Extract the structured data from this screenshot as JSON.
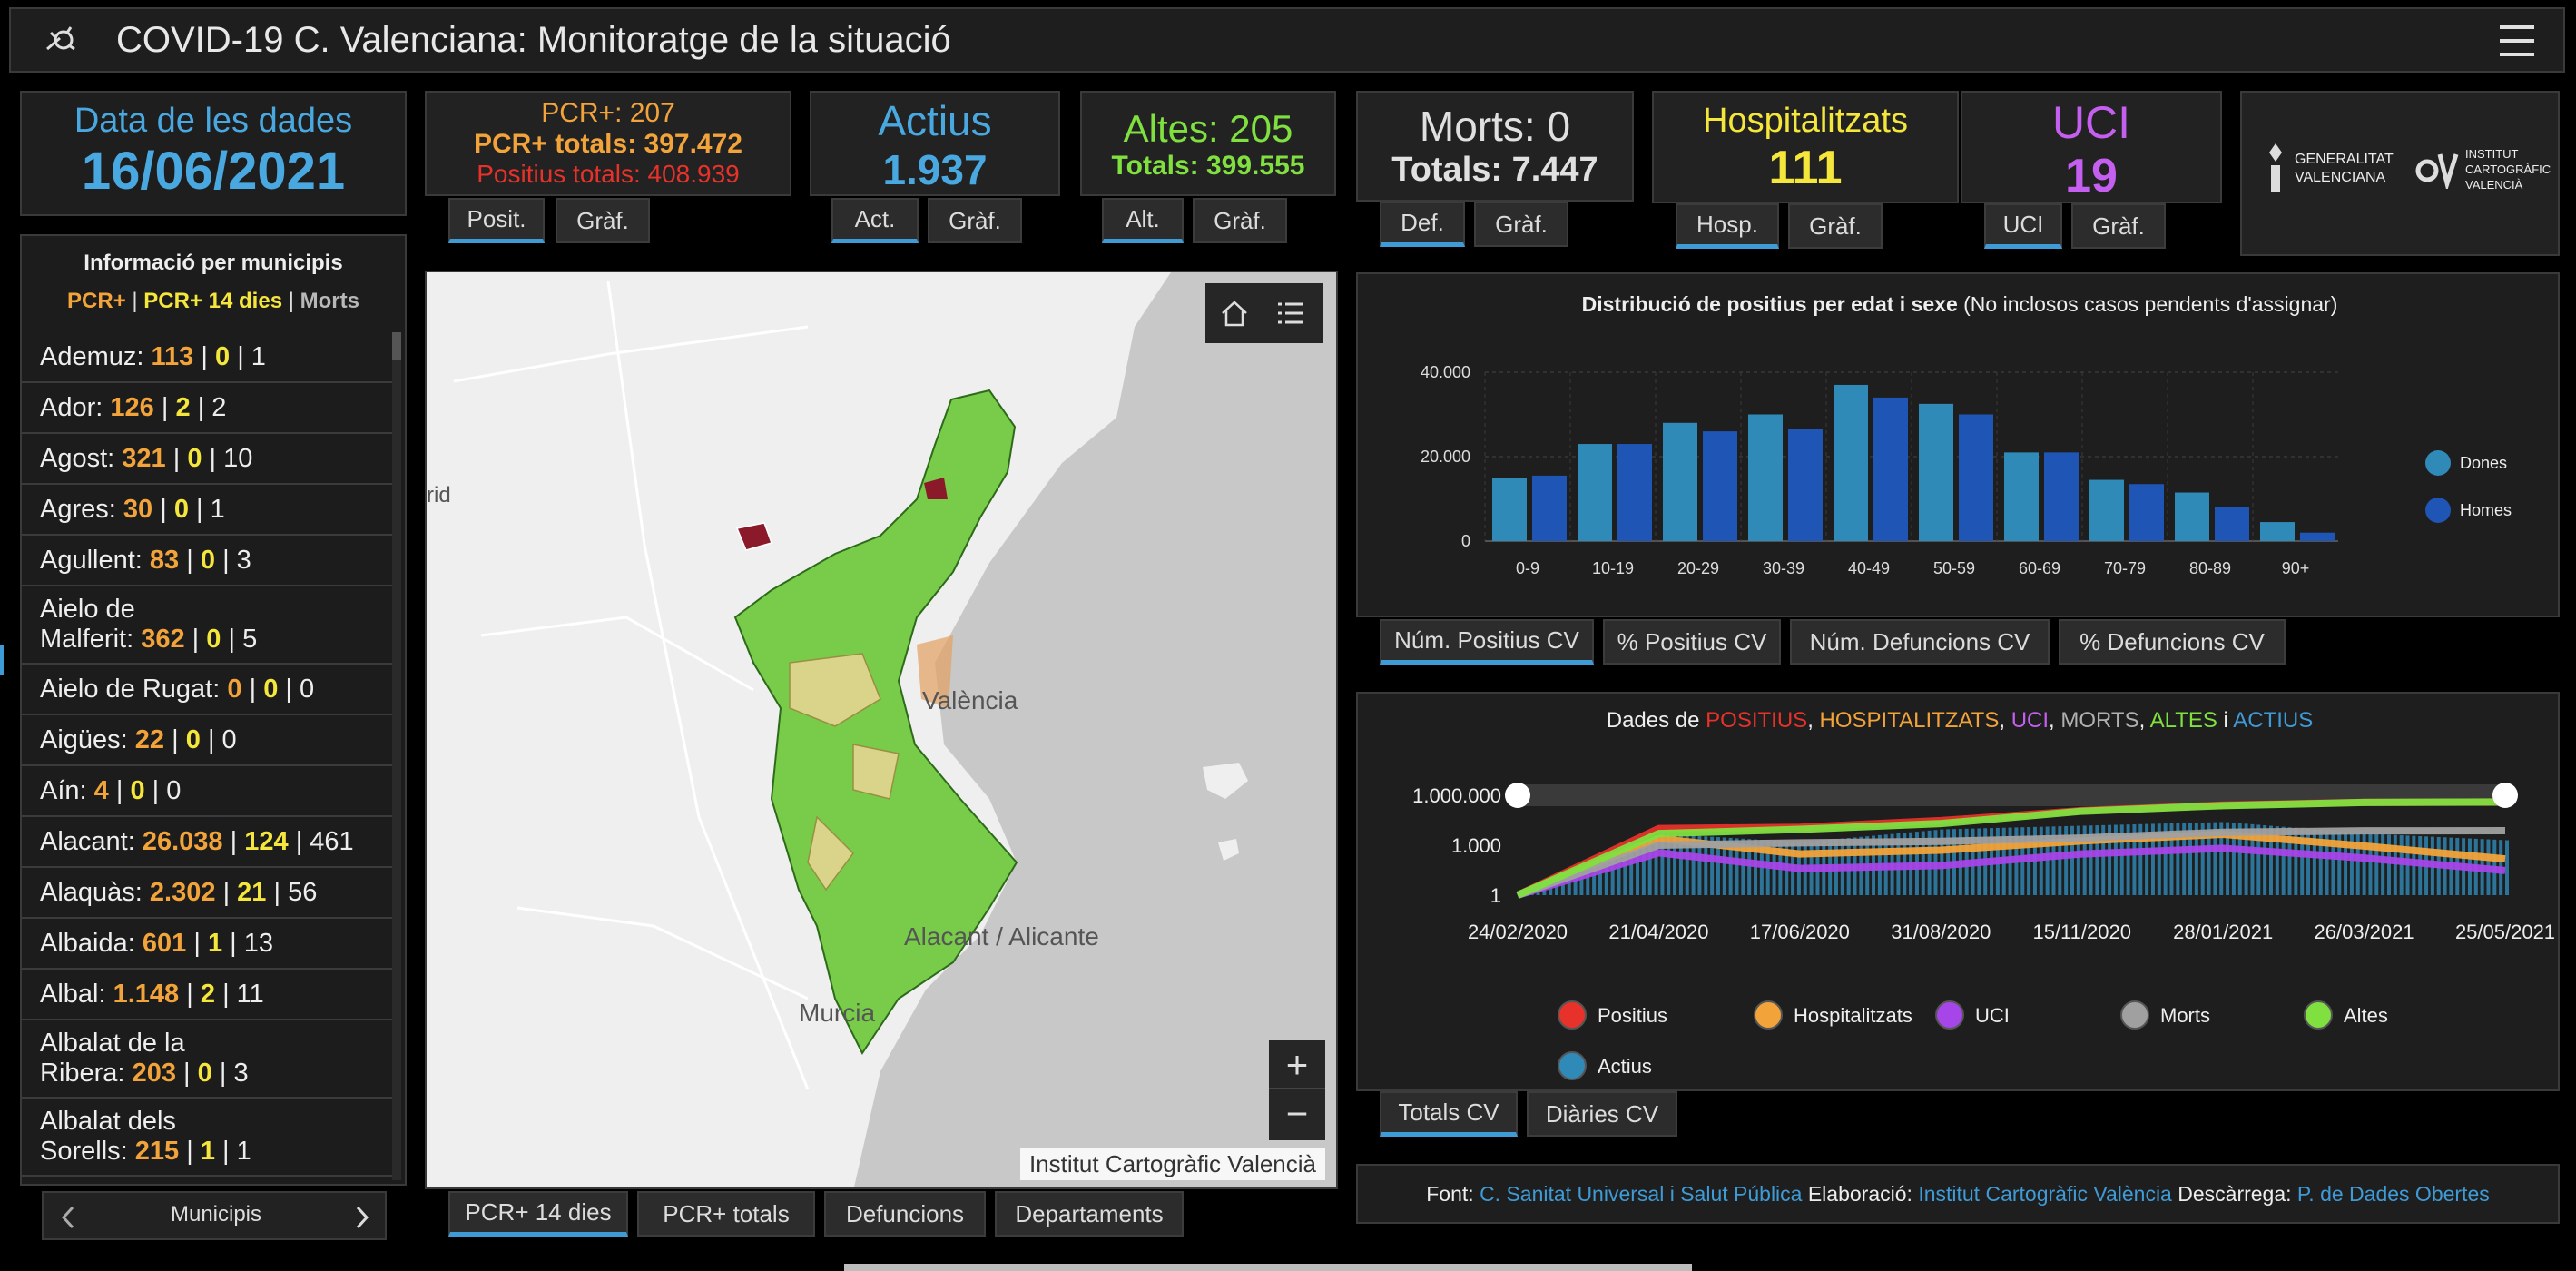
{
  "header": {
    "title": "COVID-19 C. Valenciana: Monitoratge de la situació"
  },
  "date_card": {
    "label": "Data de les dades",
    "value": "16/06/2021"
  },
  "pcr_card": {
    "line1": "PCR+: 207",
    "line2": "PCR+ totals: 397.472",
    "line3": "Positius totals: 408.939",
    "tab1": "Posit.",
    "tab2": "Gràf."
  },
  "actius_card": {
    "label": "Actius",
    "value": "1.937",
    "tab1": "Act.",
    "tab2": "Gràf."
  },
  "altes_card": {
    "line1": "Altes: 205",
    "line2": "Totals: 399.555",
    "tab1": "Alt.",
    "tab2": "Gràf."
  },
  "morts_card": {
    "line1": "Morts: 0",
    "line2": "Totals: 7.447",
    "tab1": "Def.",
    "tab2": "Gràf."
  },
  "hosp_card": {
    "label": "Hospitalitzats",
    "value": "111",
    "tab1": "Hosp.",
    "tab2": "Gràf."
  },
  "uci_card": {
    "label": "UCI",
    "value": "19",
    "tab1": "UCI",
    "tab2": "Gràf."
  },
  "logos": {
    "gva": "GENERALITAT VALENCIANA",
    "icv": "INSTITUT CARTOGRÀFIC VALENCIÀ"
  },
  "municipis": {
    "title": "Informació per municipis",
    "legend_pcr": "PCR+",
    "legend_pcr14": "PCR+ 14 dies",
    "legend_morts": "Morts",
    "sep": "|",
    "rows": [
      {
        "name": "Ademuz:",
        "pcr": "113",
        "pcr14": "0",
        "morts": "1"
      },
      {
        "name": "Ador:",
        "pcr": "126",
        "pcr14": "2",
        "morts": "2"
      },
      {
        "name": "Agost:",
        "pcr": "321",
        "pcr14": "0",
        "morts": "10"
      },
      {
        "name": "Agres:",
        "pcr": "30",
        "pcr14": "0",
        "morts": "1"
      },
      {
        "name": "Agullent:",
        "pcr": "83",
        "pcr14": "0",
        "morts": "3"
      },
      {
        "name": "Aielo de",
        "name2": "Malferit:",
        "pcr": "362",
        "pcr14": "0",
        "morts": "5"
      },
      {
        "name": "Aielo de Rugat:",
        "pcr": "0",
        "pcr14": "0",
        "morts": "0"
      },
      {
        "name": "Aigües:",
        "pcr": "22",
        "pcr14": "0",
        "morts": "0"
      },
      {
        "name": "Aín:",
        "pcr": "4",
        "pcr14": "0",
        "morts": "0"
      },
      {
        "name": "Alacant:",
        "pcr": "26.038",
        "pcr14": "124",
        "morts": "461"
      },
      {
        "name": "Alaquàs:",
        "pcr": "2.302",
        "pcr14": "21",
        "morts": "56"
      },
      {
        "name": "Albaida:",
        "pcr": "601",
        "pcr14": "1",
        "morts": "13"
      },
      {
        "name": "Albal:",
        "pcr": "1.148",
        "pcr14": "2",
        "morts": "11"
      },
      {
        "name": "Albalat de la",
        "name2": "Ribera:",
        "pcr": "203",
        "pcr14": "0",
        "morts": "3"
      },
      {
        "name": "Albalat dels",
        "name2": "Sorells:",
        "pcr": "215",
        "pcr14": "1",
        "morts": "1"
      }
    ],
    "pager_label": "Municipis"
  },
  "map": {
    "labels": {
      "madrid": "rid",
      "valencia": "València",
      "alacant": "Alacant / Alicante",
      "murcia": "Murcia"
    },
    "attribution": "Institut Cartogràfic Valencià",
    "tabs": [
      "PCR+ 14 dies",
      "PCR+ totals",
      "Defuncions",
      "Departaments"
    ]
  },
  "chart1": {
    "title_bold": "Distribució de positius per edat i sexe",
    "title_rest": "(No inclosos casos pendents d'assignar)",
    "tabs": [
      "Núm. Positius CV",
      "% Positius CV",
      "Núm. Defuncions CV",
      "% Defuncions CV"
    ]
  },
  "chart_data": [
    {
      "type": "bar",
      "title": "Distribució de positius per edat i sexe (No inclosos casos pendents d'assignar)",
      "categories": [
        "0-9",
        "10-19",
        "20-29",
        "30-39",
        "40-49",
        "50-59",
        "60-69",
        "70-79",
        "80-89",
        "90+"
      ],
      "series": [
        {
          "name": "Dones",
          "color": "#2f8ab8",
          "values": [
            15000,
            23000,
            28000,
            30000,
            37000,
            32500,
            21000,
            14500,
            11500,
            4500
          ]
        },
        {
          "name": "Homes",
          "color": "#1f55b4",
          "values": [
            15500,
            23000,
            26000,
            26500,
            34000,
            30000,
            21000,
            13500,
            8000,
            2000
          ]
        }
      ],
      "yticks": [
        "0",
        "20.000",
        "40.000"
      ],
      "ylim": [
        0,
        40000
      ],
      "legend": "right"
    },
    {
      "type": "line",
      "title": "Dades de POSITIUS, HOSPITALITZATS, UCI, MORTS, ALTES i ACTIUS",
      "x": [
        "24/02/2020",
        "21/04/2020",
        "17/06/2020",
        "31/08/2020",
        "15/11/2020",
        "28/01/2021",
        "26/03/2021",
        "25/05/2021"
      ],
      "yscale": "log",
      "yticks": [
        "1",
        "1.000",
        "1.000.000"
      ],
      "series": [
        {
          "name": "Positius",
          "color": "#e6322a",
          "values": [
            1,
            10000,
            12000,
            30000,
            120000,
            260000,
            380000,
            395000
          ]
        },
        {
          "name": "Hospitalitzats",
          "color": "#f2a33a",
          "values": [
            1,
            2500,
            300,
            500,
            1800,
            4500,
            900,
            150
          ]
        },
        {
          "name": "UCI",
          "color": "#a645e8",
          "values": [
            1,
            350,
            40,
            60,
            300,
            650,
            170,
            30
          ]
        },
        {
          "name": "Morts",
          "color": "#a0a0a0",
          "values": [
            1,
            1000,
            1400,
            1700,
            2700,
            6000,
            7300,
            7440
          ]
        },
        {
          "name": "Altes",
          "color": "#7fe040",
          "values": [
            1,
            5000,
            9000,
            20000,
            110000,
            240000,
            370000,
            399000
          ]
        },
        {
          "name": "Actius",
          "color": "#2f8ab8",
          "values": [
            1,
            5000,
            1500,
            9000,
            15000,
            25000,
            5000,
            2000
          ]
        }
      ]
    }
  ],
  "chart2": {
    "title_prefix": "Dades de",
    "title_positius": "POSITIUS",
    "title_hosp": "HOSPITALITZATS",
    "title_uci": "UCI",
    "title_morts": "MORTS",
    "title_altes": "ALTES",
    "title_i": "i",
    "title_actius": "ACTIUS",
    "comma": ",",
    "tabs": [
      "Totals CV",
      "Diàries CV"
    ]
  },
  "footer": {
    "font_label": "Font:",
    "font_link": "C. Sanitat Universal i Salut Pública",
    "elab_label": "Elaboració:",
    "elab_link": "Institut Cartogràfic València",
    "desc_label": "Descàrrega:",
    "desc_link": "P. de Dades Obertes"
  },
  "colors": {
    "blue": "#3f9bd6",
    "orange": "#f2a33a",
    "yellow": "#f5e63c",
    "green": "#7fe040",
    "red": "#e6322a",
    "purple": "#c55ff0"
  }
}
